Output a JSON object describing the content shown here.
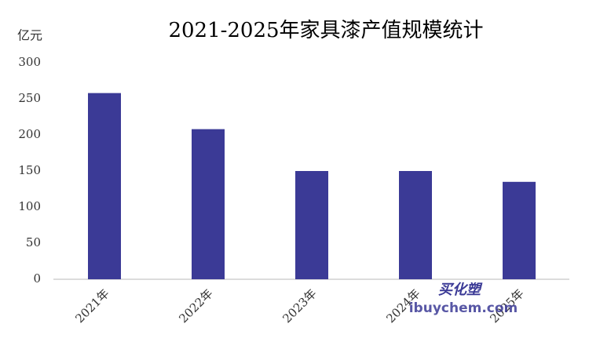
{
  "chart_data": {
    "type": "bar",
    "title": "2021-2025年家具漆产值规模统计",
    "y_unit": "亿元",
    "categories": [
      "2021年",
      "2022年",
      "2023年",
      "2024年",
      "2025年"
    ],
    "values": [
      258,
      208,
      150,
      150,
      135
    ],
    "color": "#3b3a96",
    "ylim": [
      0,
      300
    ],
    "yticks": [
      0,
      50,
      100,
      150,
      200,
      250,
      300
    ],
    "grid": false,
    "watermark": [
      "买化塑",
      "ibuychem.com"
    ]
  }
}
